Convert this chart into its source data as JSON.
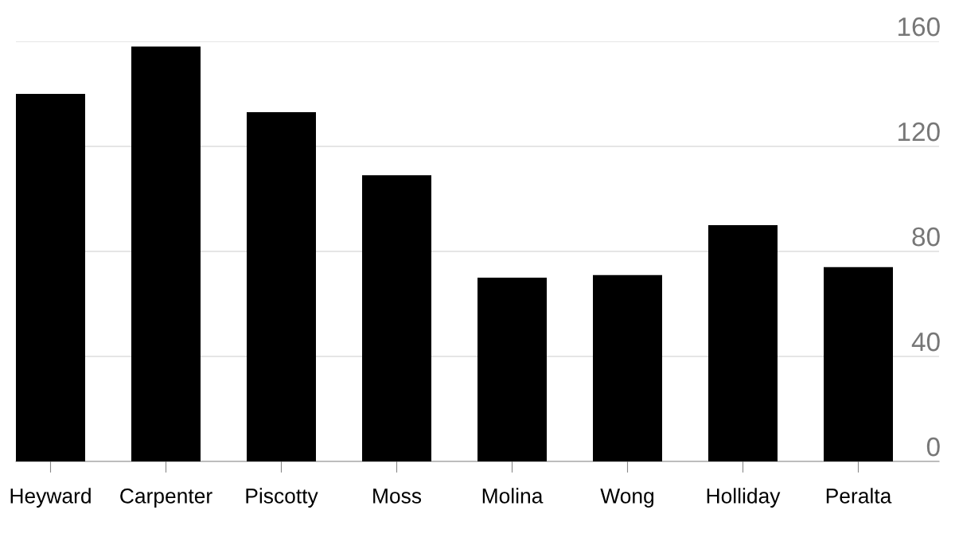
{
  "chart_data": {
    "type": "bar",
    "categories": [
      "Heyward",
      "Carpenter",
      "Piscotty",
      "Moss",
      "Molina",
      "Wong",
      "Holliday",
      "Peralta"
    ],
    "values": [
      140,
      158,
      133,
      109,
      70,
      71,
      90,
      74
    ],
    "color": "#000000",
    "ylim": [
      0,
      160
    ],
    "yticks": [
      0,
      40,
      80,
      120,
      160
    ],
    "grid": "y"
  }
}
